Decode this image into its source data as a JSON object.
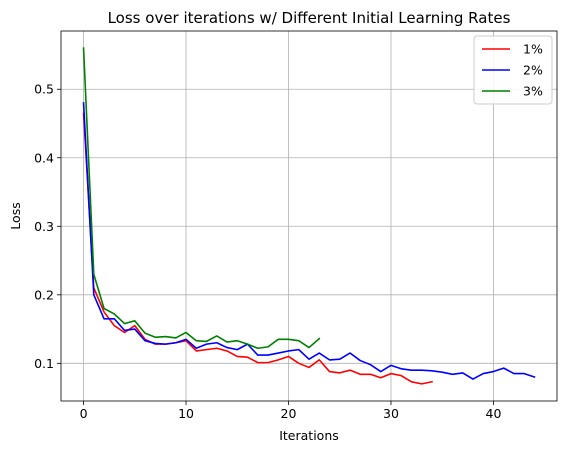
{
  "chart_data": {
    "type": "line",
    "title": "Loss over iterations w/ Different Initial Learning Rates",
    "xlabel": "Iterations",
    "ylabel": "Loss",
    "xlim": [
      -2.2,
      46.2
    ],
    "ylim": [
      0.045,
      0.585
    ],
    "xticks": [
      0,
      10,
      20,
      30,
      40
    ],
    "yticks": [
      0.1,
      0.2,
      0.3,
      0.4,
      0.5
    ],
    "grid": true,
    "legend_position": "upper right",
    "series": [
      {
        "name": "1%",
        "color": "#ff0000",
        "x": [
          0,
          1,
          2,
          3,
          4,
          5,
          6,
          7,
          8,
          9,
          10,
          11,
          12,
          13,
          14,
          15,
          16,
          17,
          18,
          19,
          20,
          21,
          22,
          23,
          24,
          25,
          26,
          27,
          28,
          29,
          30,
          31,
          32,
          33,
          34
        ],
        "values": [
          0.465,
          0.21,
          0.175,
          0.155,
          0.145,
          0.155,
          0.135,
          0.128,
          0.128,
          0.13,
          0.133,
          0.118,
          0.12,
          0.122,
          0.118,
          0.11,
          0.109,
          0.101,
          0.101,
          0.105,
          0.11,
          0.1,
          0.094,
          0.105,
          0.088,
          0.086,
          0.09,
          0.084,
          0.084,
          0.079,
          0.085,
          0.082,
          0.073,
          0.07,
          0.073
        ]
      },
      {
        "name": "2%",
        "color": "#0000ff",
        "x": [
          0,
          1,
          2,
          3,
          4,
          5,
          6,
          7,
          8,
          9,
          10,
          11,
          12,
          13,
          14,
          15,
          16,
          17,
          18,
          19,
          20,
          21,
          22,
          23,
          24,
          25,
          26,
          27,
          28,
          29,
          30,
          31,
          32,
          33,
          34,
          35,
          36,
          37,
          38,
          39,
          40,
          41,
          42,
          43,
          44
        ],
        "values": [
          0.48,
          0.2,
          0.165,
          0.165,
          0.148,
          0.15,
          0.133,
          0.129,
          0.128,
          0.13,
          0.135,
          0.122,
          0.128,
          0.13,
          0.123,
          0.12,
          0.128,
          0.112,
          0.112,
          0.115,
          0.118,
          0.12,
          0.106,
          0.115,
          0.105,
          0.106,
          0.115,
          0.104,
          0.098,
          0.088,
          0.097,
          0.092,
          0.09,
          0.09,
          0.089,
          0.087,
          0.084,
          0.086,
          0.077,
          0.085,
          0.088,
          0.093,
          0.085,
          0.085,
          0.08
        ]
      },
      {
        "name": "3%",
        "color": "#008000",
        "x": [
          0,
          1,
          2,
          3,
          4,
          5,
          6,
          7,
          8,
          9,
          10,
          11,
          12,
          13,
          14,
          15,
          16,
          17,
          18,
          19,
          20,
          21,
          22,
          23
        ],
        "values": [
          0.56,
          0.23,
          0.18,
          0.172,
          0.158,
          0.162,
          0.144,
          0.138,
          0.139,
          0.137,
          0.145,
          0.133,
          0.132,
          0.14,
          0.131,
          0.133,
          0.128,
          0.122,
          0.124,
          0.135,
          0.135,
          0.133,
          0.123,
          0.136
        ]
      }
    ]
  }
}
